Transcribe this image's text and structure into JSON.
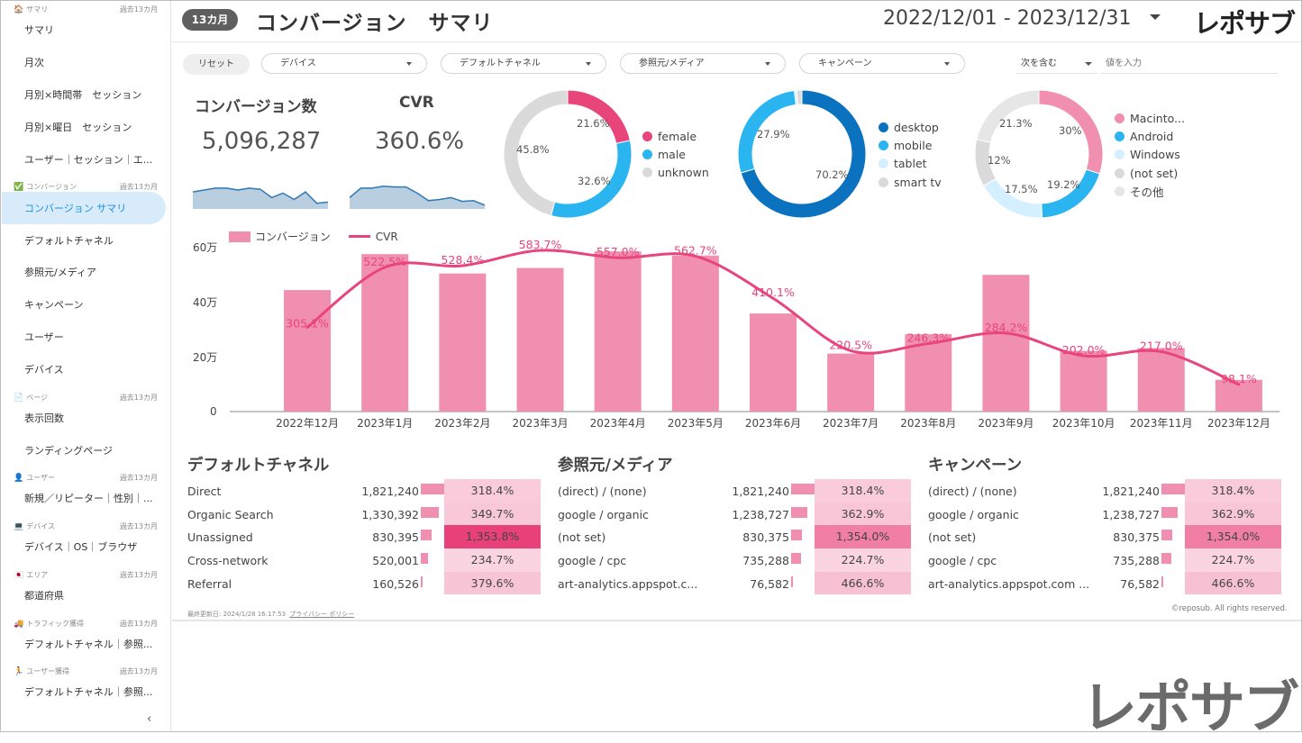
{
  "sidebar": {
    "sections": [
      {
        "icon": "🏠",
        "label": "サマリ",
        "period": "過去13カ月",
        "items": [
          "サマリ",
          "月次",
          "月別×時間帯　セッション",
          "月別×曜日　セッション",
          "ユーザー｜セッション｜エ..."
        ]
      },
      {
        "icon": "✅",
        "label": "コンバージョン",
        "period": "過去13カ月",
        "items": [
          "コンバージョン サマリ",
          "デフォルトチャネル",
          "参照元/メディア",
          "キャンペーン",
          "ユーザー",
          "デバイス"
        ]
      },
      {
        "icon": "📄",
        "label": "ページ",
        "period": "過去13カ月",
        "items": [
          "表示回数",
          "ランディングページ"
        ]
      },
      {
        "icon": "👤",
        "label": "ユーザー",
        "period": "過去13カ月",
        "items": [
          "新規／リピーター｜性別｜..."
        ]
      },
      {
        "icon": "💻",
        "label": "デバイス",
        "period": "過去13カ月",
        "items": [
          "デバイス｜OS｜ブラウザ"
        ]
      },
      {
        "icon": "🇯🇵",
        "label": "エリア",
        "period": "過去13カ月",
        "items": [
          "都道府県"
        ]
      },
      {
        "icon": "🚚",
        "label": "トラフィック獲得",
        "period": "過去13カ月",
        "items": [
          "デフォルトチャネル｜参照..."
        ]
      },
      {
        "icon": "🏃",
        "label": "ユーザー獲得",
        "period": "過去13カ月",
        "items": [
          "デフォルトチャネル｜参照..."
        ]
      }
    ],
    "collapse_glyph": "‹"
  },
  "header": {
    "badge": "13カ月",
    "title": "コンバージョン　サマリ",
    "date_range": "2022/12/01 - 2023/12/31",
    "logo": "レポサブ"
  },
  "filters": {
    "reset": "リセット",
    "dropdowns": [
      "デバイス",
      "デフォルトチャネル",
      "参照元/メディア",
      "キャンペーン"
    ],
    "condition": "次を含む",
    "value_placeholder": "値を入力"
  },
  "kpis": {
    "conversions_label": "コンバージョン数",
    "conversions_value": "5,096,287",
    "conversions_spark": [
      0.45,
      0.5,
      0.55,
      0.55,
      0.5,
      0.55,
      0.52,
      0.3,
      0.42,
      0.25,
      0.45,
      0.15,
      0.18
    ],
    "cvr_label": "CVR",
    "cvr_value": "360.6%",
    "cvr_spark": [
      0.3,
      0.55,
      0.55,
      0.6,
      0.58,
      0.58,
      0.42,
      0.22,
      0.25,
      0.3,
      0.2,
      0.22,
      0.1
    ]
  },
  "donuts": [
    {
      "name": "gender",
      "slices": [
        {
          "label": "female",
          "value": 21.6,
          "color": "#e8457a"
        },
        {
          "label": "male",
          "value": 32.6,
          "color": "#2bb5f0"
        },
        {
          "label": "unknown",
          "value": 45.8,
          "color": "#dadada"
        }
      ]
    },
    {
      "name": "device",
      "slices": [
        {
          "label": "desktop",
          "value": 70.2,
          "color": "#0a72bf"
        },
        {
          "label": "mobile",
          "value": 27.9,
          "color": "#2bb5f0"
        },
        {
          "label": "tablet",
          "value": 0.6,
          "color": "#d4efff"
        },
        {
          "label": "smart tv",
          "value": 1.3,
          "color": "#dadada"
        }
      ]
    },
    {
      "name": "os",
      "slices": [
        {
          "label": "Macinto...",
          "value": 30,
          "color": "#f18fb0"
        },
        {
          "label": "Android",
          "value": 19.2,
          "color": "#2bb5f0"
        },
        {
          "label": "Windows",
          "value": 17.5,
          "color": "#d4efff"
        },
        {
          "label": "(not set)",
          "value": 12,
          "color": "#dadada"
        },
        {
          "label": "その他",
          "value": 21.3,
          "color": "#e6e6e6"
        }
      ]
    }
  ],
  "donut_labels": {
    "gender": [
      "21.6%",
      "32.6%",
      "45.8%"
    ],
    "device": [
      "70.2%",
      "27.9%"
    ],
    "os": [
      "30%",
      "19.2%",
      "17.5%",
      "12%",
      "21.3%"
    ]
  },
  "chart_data": {
    "type": "bar",
    "categories": [
      "2022年12月",
      "2023年1月",
      "2023年2月",
      "2023年3月",
      "2023年4月",
      "2023年5月",
      "2023年6月",
      "2023年7月",
      "2023年8月",
      "2023年9月",
      "2023年10月",
      "2023年11月",
      "2023年12月"
    ],
    "series": [
      {
        "name": "コンバージョン",
        "type": "bar",
        "axis": "left",
        "color": "#f18fb0",
        "values": [
          44,
          57,
          50,
          52,
          58,
          56.5,
          35.5,
          21,
          28,
          49.5,
          22,
          23,
          11.5
        ]
      },
      {
        "name": "CVR",
        "type": "line",
        "axis": "right",
        "color": "#e8457a",
        "values": [
          305.1,
          522.5,
          528.4,
          583.7,
          557.0,
          562.7,
          410.1,
          220.5,
          246.3,
          284.2,
          202.0,
          217.0,
          98.1
        ],
        "labels": [
          "305.1%",
          "522.5%",
          "528.4%",
          "583.7%",
          "557.0%",
          "562.7%",
          "410.1%",
          "220.5%",
          "246.3%",
          "284.2%",
          "202.0%",
          "217.0%",
          "98.1%"
        ]
      }
    ],
    "y_ticks": [
      "0",
      "20万",
      "40万",
      "60万"
    ],
    "ylim": [
      0,
      60
    ],
    "y2lim": [
      0,
      600
    ],
    "legend": [
      "コンバージョン",
      "CVR"
    ]
  },
  "tables": [
    {
      "title": "デフォルトチャネル",
      "rows": [
        {
          "name": "Direct",
          "value": "1,821,240",
          "ratio": 1.0,
          "cvr": "318.4%",
          "heat": 0.15
        },
        {
          "name": "Organic Search",
          "value": "1,330,392",
          "ratio": 0.73,
          "cvr": "349.7%",
          "heat": 0.17
        },
        {
          "name": "Unassigned",
          "value": "830,395",
          "ratio": 0.46,
          "cvr": "1,353.8%",
          "heat": 1.0
        },
        {
          "name": "Cross-network",
          "value": "520,001",
          "ratio": 0.29,
          "cvr": "234.7%",
          "heat": 0.1
        },
        {
          "name": "Referral",
          "value": "160,526",
          "ratio": 0.09,
          "cvr": "379.6%",
          "heat": 0.19
        }
      ]
    },
    {
      "title": "参照元/メディア",
      "rows": [
        {
          "name": "(direct) / (none)",
          "value": "1,821,240",
          "ratio": 1.0,
          "cvr": "318.4%",
          "heat": 0.15
        },
        {
          "name": "google / organic",
          "value": "1,238,727",
          "ratio": 0.68,
          "cvr": "362.9%",
          "heat": 0.18
        },
        {
          "name": "(not set)",
          "value": "830,375",
          "ratio": 0.46,
          "cvr": "1,354.0%",
          "heat": 0.62
        },
        {
          "name": "google / cpc",
          "value": "735,288",
          "ratio": 0.4,
          "cvr": "224.7%",
          "heat": 0.1
        },
        {
          "name": "art-analytics.appspot.c...",
          "value": "76,582",
          "ratio": 0.05,
          "cvr": "466.6%",
          "heat": 0.22
        }
      ]
    },
    {
      "title": "キャンペーン",
      "rows": [
        {
          "name": "(direct) / (none)",
          "value": "1,821,240",
          "ratio": 1.0,
          "cvr": "318.4%",
          "heat": 0.15
        },
        {
          "name": "google / organic",
          "value": "1,238,727",
          "ratio": 0.68,
          "cvr": "362.9%",
          "heat": 0.18
        },
        {
          "name": "(not set)",
          "value": "830,375",
          "ratio": 0.46,
          "cvr": "1,354.0%",
          "heat": 0.62
        },
        {
          "name": "google / cpc",
          "value": "735,288",
          "ratio": 0.4,
          "cvr": "224.7%",
          "heat": 0.1
        },
        {
          "name": "art-analytics.appspot.com ...",
          "value": "76,582",
          "ratio": 0.05,
          "cvr": "466.6%",
          "heat": 0.22
        }
      ]
    }
  ],
  "footer": {
    "updated": "最終更新日: 2024/1/28 16:17:53",
    "privacy": "プライバシー ポリシー",
    "copyright": "©reposub. All rights reserved."
  },
  "watermark_logo": "レポサブ"
}
